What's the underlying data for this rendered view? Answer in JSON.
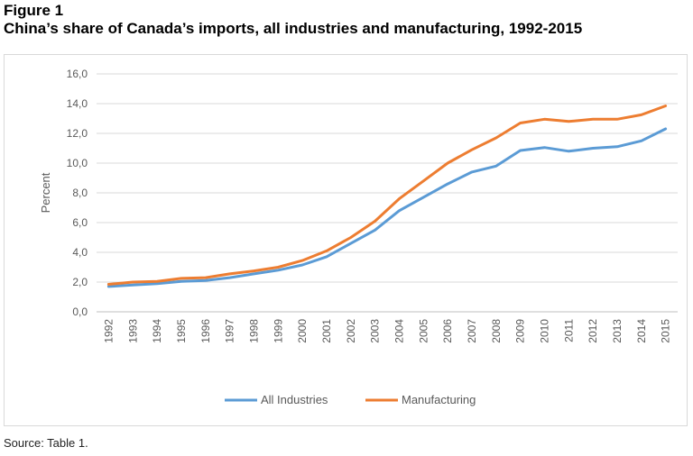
{
  "figure": {
    "label": "Figure 1",
    "title": "China’s share of Canada’s imports, all industries and manufacturing, 1992-2015",
    "source": "Source: Table 1."
  },
  "chart_data": {
    "type": "line",
    "title": "",
    "xlabel": "",
    "ylabel": "Percent",
    "ylim": [
      0,
      16
    ],
    "yticks": [
      "0,0",
      "2,0",
      "4,0",
      "6,0",
      "8,0",
      "10,0",
      "12,0",
      "14,0",
      "16,0"
    ],
    "grid": true,
    "legend_position": "bottom",
    "categories": [
      "1992",
      "1993",
      "1994",
      "1995",
      "1996",
      "1997",
      "1998",
      "1999",
      "2000",
      "2001",
      "2002",
      "2003",
      "2004",
      "2005",
      "2006",
      "2007",
      "2008",
      "2009",
      "2010",
      "2011",
      "2012",
      "2013",
      "2014",
      "2015"
    ],
    "series": [
      {
        "name": "All Industries",
        "color": "#5b9bd5",
        "values": [
          1.7,
          1.8,
          1.9,
          2.05,
          2.1,
          2.3,
          2.55,
          2.8,
          3.15,
          3.7,
          4.6,
          5.5,
          6.8,
          7.7,
          8.6,
          9.4,
          9.8,
          10.85,
          11.05,
          10.8,
          11.0,
          11.1,
          11.5,
          12.3
        ]
      },
      {
        "name": "Manufacturing",
        "color": "#ed7d31",
        "values": [
          1.85,
          2.0,
          2.05,
          2.25,
          2.3,
          2.55,
          2.75,
          3.0,
          3.45,
          4.1,
          5.0,
          6.1,
          7.6,
          8.8,
          10.0,
          10.9,
          11.7,
          12.7,
          12.95,
          12.8,
          12.95,
          12.95,
          13.25,
          13.85
        ]
      }
    ]
  }
}
